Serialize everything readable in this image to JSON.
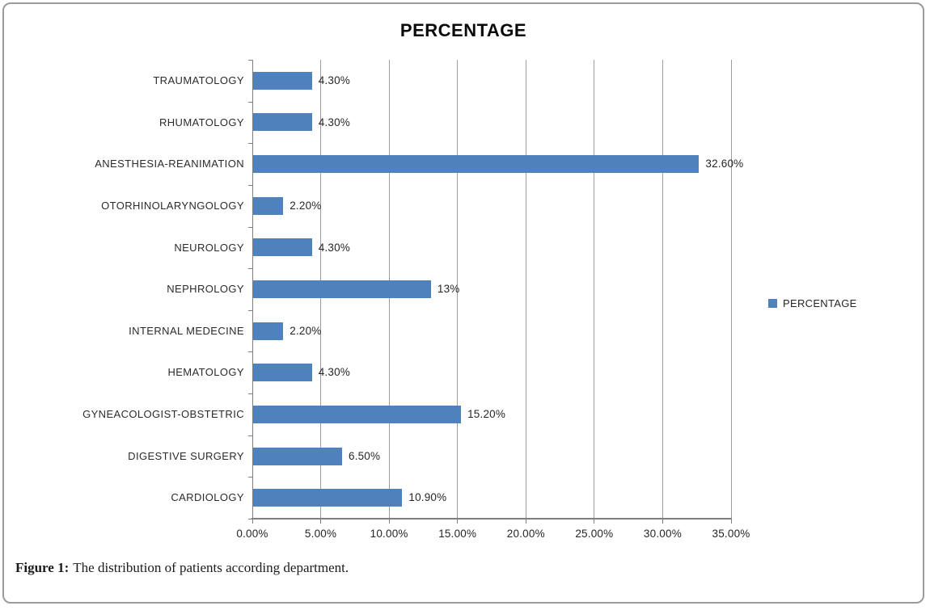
{
  "figure": {
    "caption_label": "Figure 1:",
    "caption_text": "The distribution of patients according department."
  },
  "chart_data": {
    "type": "bar",
    "orientation": "horizontal",
    "title": "PERCENTAGE",
    "categories": [
      "TRAUMATOLOGY",
      "RHUMATOLOGY",
      "ANESTHESIA-REANIMATION",
      "OTORHINOLARYNGOLOGY",
      "NEUROLOGY",
      "NEPHROLOGY",
      "INTERNAL MEDECINE",
      "HEMATOLOGY",
      "GYNEACOLOGIST-OBSTETRIC",
      "DIGESTIVE SURGERY",
      "CARDIOLOGY"
    ],
    "values": [
      4.3,
      4.3,
      32.6,
      2.2,
      4.3,
      13,
      2.2,
      4.3,
      15.2,
      6.5,
      10.9
    ],
    "data_labels": [
      "4.30%",
      "4.30%",
      "32.60%",
      "2.20%",
      "4.30%",
      "13%",
      "2.20%",
      "4.30%",
      "15.20%",
      "6.50%",
      "10.90%"
    ],
    "x_tick_values": [
      0,
      5,
      10,
      15,
      20,
      25,
      30,
      35
    ],
    "x_tick_labels": [
      "0.00%",
      "5.00%",
      "10.00%",
      "15.00%",
      "20.00%",
      "25.00%",
      "30.00%",
      "35.00%"
    ],
    "xlim": [
      0,
      35
    ],
    "grid": true,
    "legend": [
      "PERCENTAGE"
    ],
    "legend_position": "right",
    "colors": {
      "bar": "#4f81bd",
      "gridline": "#9c9c9c",
      "axis": "#7f7f7f",
      "text": "#262626",
      "title": "#0a0a0a"
    }
  }
}
